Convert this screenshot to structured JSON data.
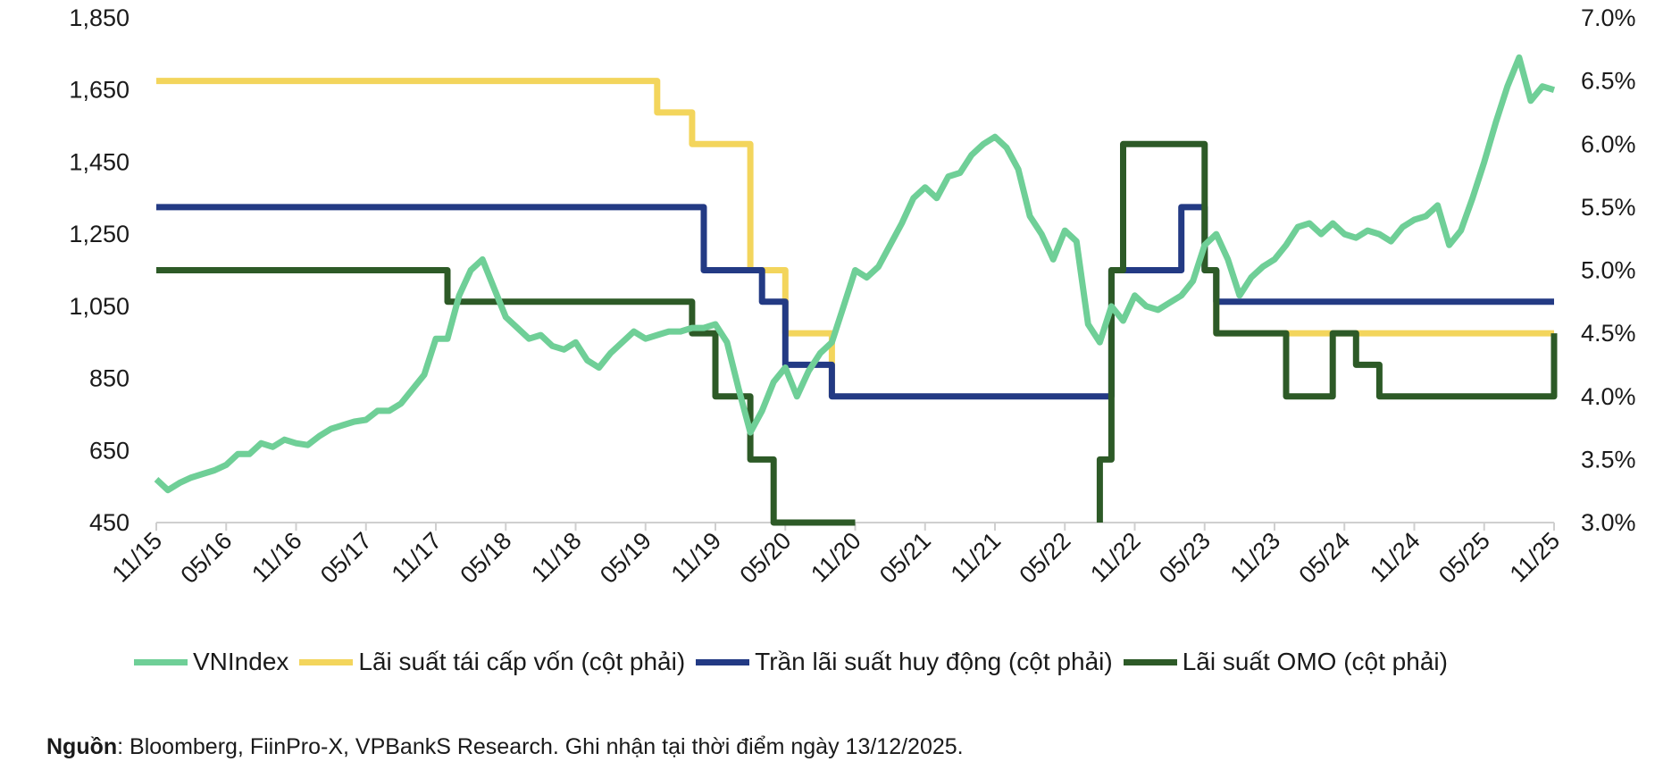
{
  "chart_data": {
    "type": "line",
    "title": "",
    "x_tick_labels": [
      "11/15",
      "05/16",
      "11/16",
      "05/17",
      "11/17",
      "05/18",
      "11/18",
      "05/19",
      "11/19",
      "05/20",
      "11/20",
      "05/21",
      "11/21",
      "05/22",
      "11/22",
      "05/23",
      "11/23",
      "05/24",
      "11/24",
      "05/25",
      "11/25"
    ],
    "x_unit": "months since Nov 2015",
    "x_range": [
      0,
      120
    ],
    "left_axis": {
      "range": [
        450,
        1850
      ],
      "ticks": [
        450,
        650,
        850,
        1050,
        1250,
        1450,
        1650,
        1850
      ],
      "tick_labels": [
        "450",
        "650",
        "850",
        "1,050",
        "1,250",
        "1,450",
        "1,650",
        "1,850"
      ]
    },
    "right_axis": {
      "range": [
        3.0,
        7.0
      ],
      "ticks": [
        3.0,
        3.5,
        4.0,
        4.5,
        5.0,
        5.5,
        6.0,
        6.5,
        7.0
      ],
      "tick_labels": [
        "3.0%",
        "3.5%",
        "4.0%",
        "4.5%",
        "5.0%",
        "5.5%",
        "6.0%",
        "6.5%",
        "7.0%"
      ]
    },
    "series": [
      {
        "name": "VNIndex",
        "axis": "left",
        "color": "#6fcf97",
        "x": [
          0,
          1,
          2,
          3,
          4,
          5,
          6,
          7,
          8,
          9,
          10,
          11,
          12,
          13,
          14,
          15,
          16,
          17,
          18,
          19,
          20,
          21,
          22,
          23,
          24,
          25,
          26,
          27,
          28,
          29,
          30,
          31,
          32,
          33,
          34,
          35,
          36,
          37,
          38,
          39,
          40,
          41,
          42,
          43,
          44,
          45,
          46,
          47,
          48,
          49,
          50,
          51,
          52,
          53,
          54,
          55,
          56,
          57,
          58,
          59,
          60,
          61,
          62,
          63,
          64,
          65,
          66,
          67,
          68,
          69,
          70,
          71,
          72,
          73,
          74,
          75,
          76,
          77,
          78,
          79,
          80,
          81,
          82,
          83,
          84,
          85,
          86,
          87,
          88,
          89,
          90,
          91,
          92,
          93,
          94,
          95,
          96,
          97,
          98,
          99,
          100,
          101,
          102,
          103,
          104,
          105,
          106,
          107,
          108,
          109,
          110,
          111,
          112,
          113,
          114,
          115,
          116,
          117,
          118,
          119,
          120
        ],
        "values": [
          570,
          540,
          560,
          575,
          585,
          595,
          610,
          640,
          640,
          670,
          660,
          680,
          670,
          665,
          690,
          710,
          720,
          730,
          735,
          760,
          760,
          780,
          820,
          860,
          960,
          960,
          1080,
          1150,
          1180,
          1100,
          1020,
          990,
          960,
          970,
          940,
          930,
          950,
          900,
          880,
          920,
          950,
          980,
          960,
          970,
          980,
          980,
          990,
          990,
          1000,
          950,
          820,
          700,
          760,
          840,
          880,
          800,
          870,
          920,
          950,
          1050,
          1150,
          1130,
          1160,
          1220,
          1280,
          1350,
          1380,
          1350,
          1410,
          1420,
          1470,
          1500,
          1520,
          1490,
          1430,
          1300,
          1250,
          1180,
          1260,
          1230,
          1000,
          950,
          1050,
          1010,
          1080,
          1050,
          1040,
          1060,
          1080,
          1120,
          1220,
          1250,
          1180,
          1080,
          1130,
          1160,
          1180,
          1220,
          1270,
          1280,
          1250,
          1280,
          1250,
          1240,
          1260,
          1250,
          1230,
          1270,
          1290,
          1300,
          1330,
          1220,
          1260,
          1350,
          1450,
          1560,
          1660,
          1740,
          1620,
          1660,
          1650
        ]
      },
      {
        "name": "Lãi suất tái cấp vốn (cột phải)",
        "axis": "right",
        "color": "#f3d55c",
        "x": [
          0,
          43,
          43,
          46,
          46,
          51,
          51,
          54,
          54,
          58,
          58
        ],
        "values": [
          6.5,
          6.5,
          6.25,
          6.25,
          6.0,
          6.0,
          5.0,
          5.0,
          4.5,
          4.5,
          4.0
        ],
        "x2": [
          91,
          91,
          120
        ],
        "values2": [
          5.0,
          4.5,
          4.5
        ]
      },
      {
        "name": "Trần lãi suất huy động (cột phải)",
        "axis": "right",
        "color": "#233a84",
        "x": [
          0,
          47,
          47,
          52,
          52,
          54,
          54,
          58,
          58,
          82,
          82,
          88,
          88,
          90,
          90,
          91,
          91,
          120
        ],
        "values": [
          5.5,
          5.5,
          5.0,
          5.0,
          4.75,
          4.75,
          4.25,
          4.25,
          4.0,
          4.0,
          5.0,
          5.0,
          5.5,
          5.5,
          5.0,
          5.0,
          4.75,
          4.75
        ]
      },
      {
        "name": "Lãi suất OMO (cột phải)",
        "axis": "right",
        "color": "#2d5a27",
        "x": [
          0,
          25,
          25,
          46,
          46,
          48,
          48,
          51,
          51,
          53,
          53,
          60
        ],
        "values": [
          5.0,
          5.0,
          4.75,
          4.75,
          4.5,
          4.5,
          4.0,
          4.0,
          3.5,
          3.5,
          3.0,
          3.0
        ],
        "x2": [
          81,
          81,
          82,
          82,
          83,
          83,
          84,
          84,
          90,
          90,
          91,
          91,
          97,
          97,
          101,
          101,
          103,
          103,
          105,
          105,
          120,
          120
        ],
        "values2": [
          3.0,
          3.5,
          3.5,
          5.0,
          5.0,
          6.0,
          6.0,
          6.0,
          6.0,
          5.0,
          5.0,
          4.5,
          4.5,
          4.0,
          4.0,
          4.5,
          4.5,
          4.25,
          4.25,
          4.0,
          4.0,
          4.5
        ]
      }
    ],
    "legend": [
      {
        "label": "VNIndex",
        "color": "#6fcf97"
      },
      {
        "label": "Lãi suất tái cấp vốn (cột phải)",
        "color": "#f3d55c"
      },
      {
        "label": "Trần lãi suất huy động (cột phải)",
        "color": "#233a84"
      },
      {
        "label": "Lãi suất OMO (cột phải)",
        "color": "#2d5a27"
      }
    ],
    "legend_position": "bottom"
  },
  "source": {
    "label": "Nguồn",
    "text": ": Bloomberg, FiinPro-X, VPBankS Research. Ghi nhận tại thời điểm ngày 13/12/2025."
  }
}
